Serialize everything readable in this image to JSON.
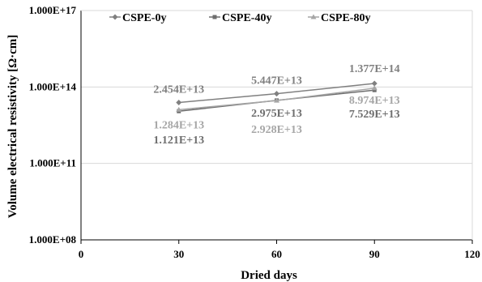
{
  "chart_data": {
    "type": "line",
    "xlabel": "Dried days",
    "ylabel": "Volume electrical resistivity [Ω·cm]",
    "xlim": [
      0,
      120
    ],
    "x_ticks": [
      0,
      30,
      60,
      90,
      120
    ],
    "y_scale": "log",
    "ylim": [
      100000000.0,
      1e+17
    ],
    "y_ticks": [
      {
        "value": 100000000.0,
        "label": "1.000E+08"
      },
      {
        "value": 100000000000.0,
        "label": "1.000E+11"
      },
      {
        "value": 100000000000000.0,
        "label": "1.000E+14"
      },
      {
        "value": 1e+17,
        "label": "1.000E+17"
      }
    ],
    "grid": "horizontal",
    "legend": "top",
    "x": [
      30,
      60,
      90
    ],
    "series": [
      {
        "name": "CSPE-0y",
        "color": "#808080",
        "marker": "diamond",
        "values": [
          24540000000000.0,
          54470000000000.0,
          137700000000000.0
        ],
        "labels": [
          "2.454E+13",
          "5.447E+13",
          "1.377E+14"
        ]
      },
      {
        "name": "CSPE-40y",
        "color": "#6e6e6e",
        "marker": "square",
        "values": [
          11210000000000.0,
          29750000000000.0,
          75290000000000.0
        ],
        "labels": [
          "1.121E+13",
          "2.975E+13",
          "7.529E+13"
        ]
      },
      {
        "name": "CSPE-80y",
        "color": "#a6a6a6",
        "marker": "triangle",
        "values": [
          12840000000000.0,
          29280000000000.0,
          89740000000000.0
        ],
        "labels": [
          "1.284E+13",
          "2.928E+13",
          "8.974E+13"
        ]
      }
    ]
  }
}
